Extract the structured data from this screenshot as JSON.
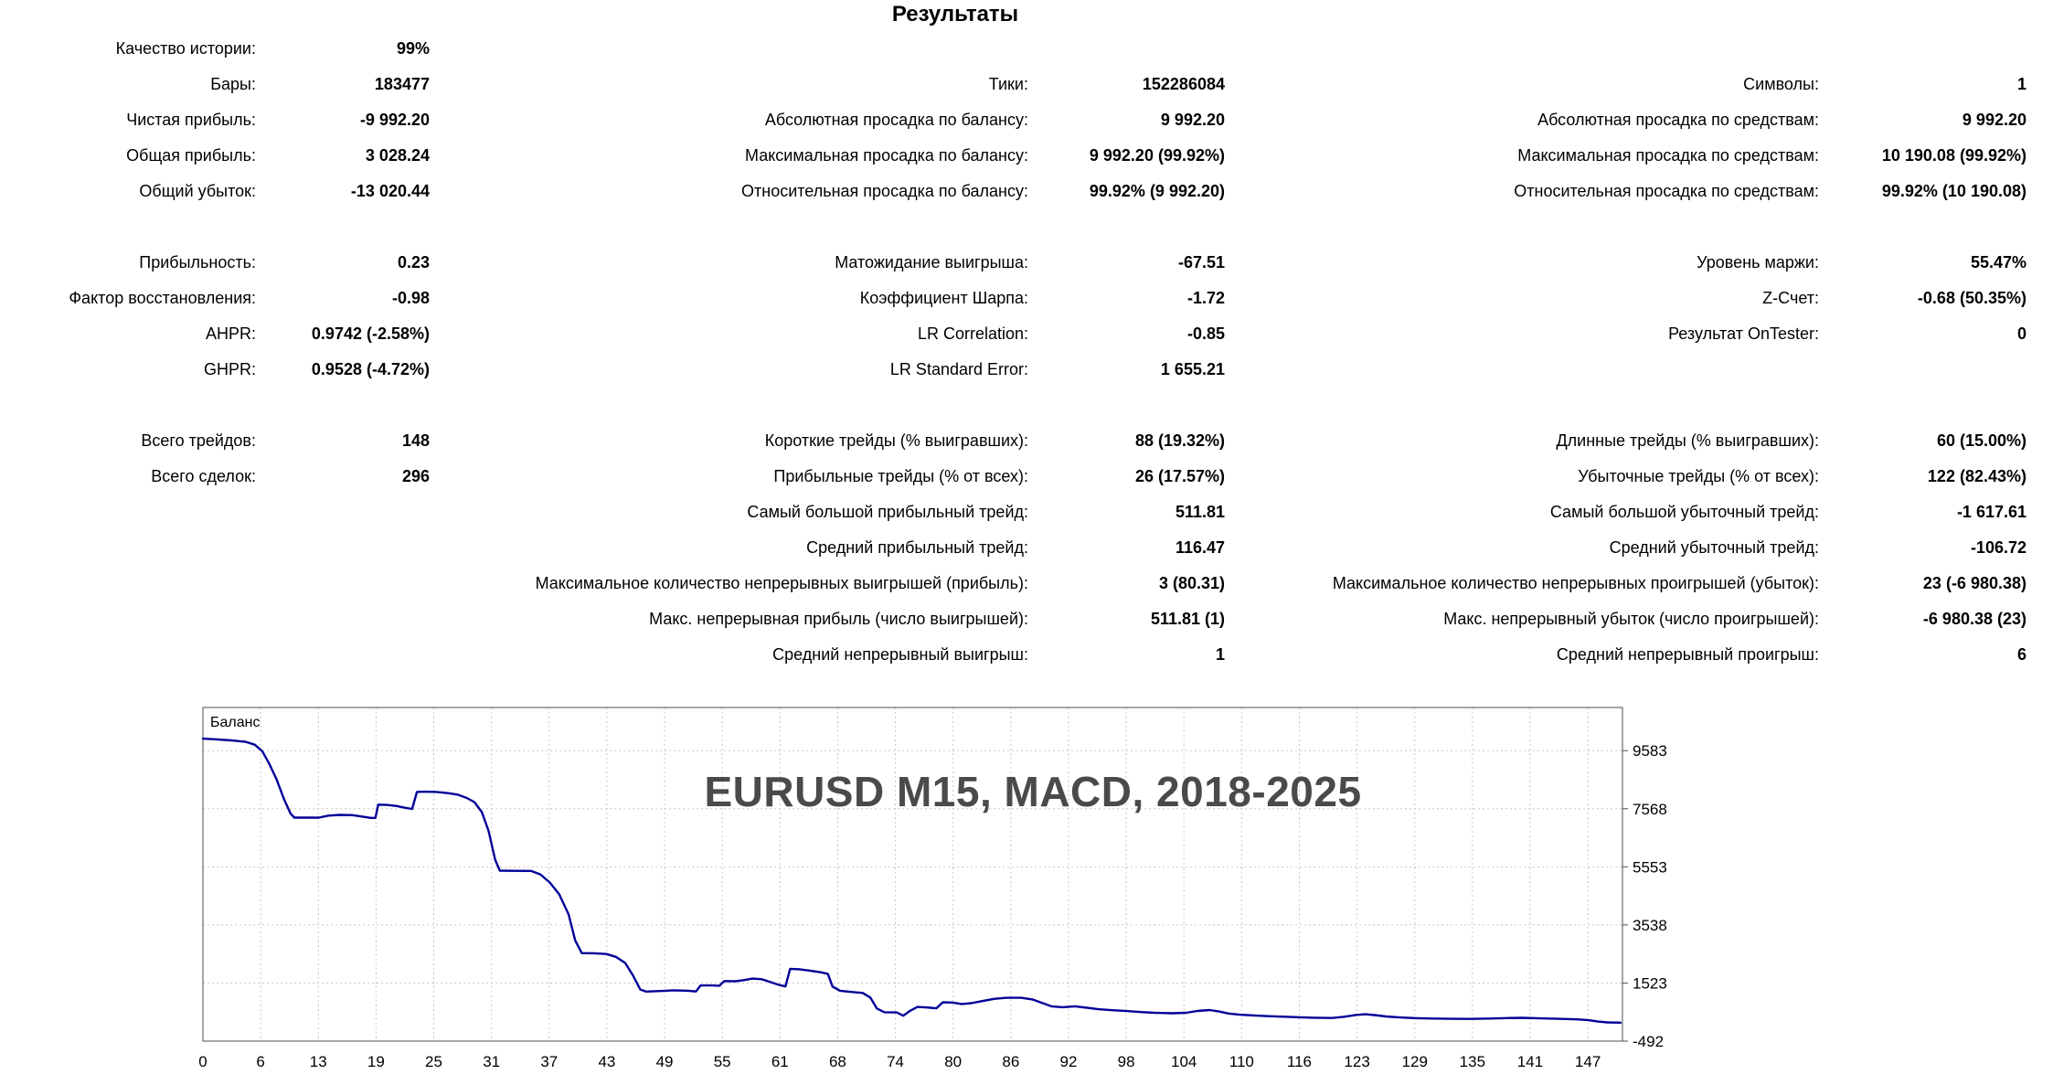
{
  "title": "Результаты",
  "stats": {
    "sections": [
      {
        "rows": [
          [
            "Качество истории:",
            "99%",
            "",
            "",
            "",
            ""
          ],
          [
            "Бары:",
            "183477",
            "Тики:",
            "152286084",
            "Символы:",
            "1"
          ],
          [
            "Чистая прибыль:",
            "-9 992.20",
            "Абсолютная просадка по балансу:",
            "9 992.20",
            "Абсолютная просадка по средствам:",
            "9 992.20"
          ],
          [
            "Общая прибыль:",
            "3 028.24",
            "Максимальная просадка по балансу:",
            "9 992.20 (99.92%)",
            "Максимальная просадка по средствам:",
            "10 190.08 (99.92%)"
          ],
          [
            "Общий убыток:",
            "-13 020.44",
            "Относительная просадка по балансу:",
            "99.92% (9 992.20)",
            "Относительная просадка по средствам:",
            "99.92% (10 190.08)"
          ]
        ]
      },
      {
        "rows": [
          [
            "Прибыльность:",
            "0.23",
            "Матожидание выигрыша:",
            "-67.51",
            "Уровень маржи:",
            "55.47%"
          ],
          [
            "Фактор восстановления:",
            "-0.98",
            "Коэффициент Шарпа:",
            "-1.72",
            "Z-Счет:",
            "-0.68 (50.35%)"
          ],
          [
            "AHPR:",
            "0.9742 (-2.58%)",
            "LR Correlation:",
            "-0.85",
            "Результат OnTester:",
            "0"
          ],
          [
            "GHPR:",
            "0.9528 (-4.72%)",
            "LR Standard Error:",
            "1 655.21",
            "",
            ""
          ]
        ]
      },
      {
        "rows": [
          [
            "Всего трейдов:",
            "148",
            "Короткие трейды (% выигравших):",
            "88 (19.32%)",
            "Длинные трейды (% выигравших):",
            "60 (15.00%)"
          ],
          [
            "Всего сделок:",
            "296",
            "Прибыльные трейды (% от всех):",
            "26 (17.57%)",
            "Убыточные трейды (% от всех):",
            "122 (82.43%)"
          ],
          [
            "",
            "",
            "Самый большой прибыльный трейд:",
            "511.81",
            "Самый большой убыточный трейд:",
            "-1 617.61"
          ],
          [
            "",
            "",
            "Средний прибыльный трейд:",
            "116.47",
            "Средний убыточный трейд:",
            "-106.72"
          ],
          [
            "",
            "",
            "Максимальное количество непрерывных выигрышей (прибыль):",
            "3 (80.31)",
            "Максимальное количество непрерывных проигрышей (убыток):",
            "23 (-6 980.38)"
          ],
          [
            "",
            "",
            "Макс. непрерывная прибыль (число выигрышей):",
            "511.81 (1)",
            "Макс. непрерывный убыток (число проигрышей):",
            "-6 980.38 (23)"
          ],
          [
            "",
            "",
            "Средний непрерывный выигрыш:",
            "1",
            "Средний непрерывный проигрыш:",
            "6"
          ]
        ]
      }
    ]
  },
  "chart_data": {
    "type": "line",
    "title": "Баланс",
    "watermark": "EURUSD M15, MACD, 2018-2025",
    "x_tick_labels": [
      "0",
      "6",
      "13",
      "19",
      "25",
      "31",
      "37",
      "43",
      "49",
      "55",
      "61",
      "68",
      "74",
      "80",
      "86",
      "92",
      "98",
      "104",
      "110",
      "116",
      "123",
      "129",
      "135",
      "141",
      "147"
    ],
    "y_ticks": [
      9583,
      7568,
      5553,
      3538,
      1523,
      -492
    ],
    "xlim": [
      0,
      150.6
    ],
    "ylim": [
      -492,
      11080
    ],
    "grid": true,
    "legend_position": "top-left-inside",
    "line_color": "#000099",
    "grid_color": "#c9c9c9",
    "border_color": "#4d4d4d",
    "watermark_color": "#4a4a4a",
    "series": [
      {
        "name": "Баланс",
        "points": [
          [
            0,
            10000
          ],
          [
            1.5,
            9975
          ],
          [
            3,
            9940
          ],
          [
            4.5,
            9890
          ],
          [
            5.5,
            9790
          ],
          [
            6.3,
            9560
          ],
          [
            7,
            9150
          ],
          [
            7.8,
            8600
          ],
          [
            8.6,
            7900
          ],
          [
            9.3,
            7400
          ],
          [
            9.7,
            7260
          ],
          [
            12.3,
            7260
          ],
          [
            13.3,
            7330
          ],
          [
            14.5,
            7355
          ],
          [
            15.8,
            7350
          ],
          [
            16.8,
            7300
          ],
          [
            17.8,
            7250
          ],
          [
            18.3,
            7250
          ],
          [
            18.6,
            7710
          ],
          [
            19.5,
            7700
          ],
          [
            20.5,
            7665
          ],
          [
            21.5,
            7600
          ],
          [
            22.2,
            7560
          ],
          [
            22.7,
            8150
          ],
          [
            23.5,
            8160
          ],
          [
            24.8,
            8150
          ],
          [
            26,
            8110
          ],
          [
            27,
            8060
          ],
          [
            28,
            7940
          ],
          [
            28.8,
            7800
          ],
          [
            29.6,
            7450
          ],
          [
            30.3,
            6800
          ],
          [
            31,
            5800
          ],
          [
            31.5,
            5420
          ],
          [
            33,
            5415
          ],
          [
            34.8,
            5410
          ],
          [
            35.8,
            5290
          ],
          [
            36.8,
            5010
          ],
          [
            37.8,
            4600
          ],
          [
            38.8,
            3900
          ],
          [
            39.5,
            3000
          ],
          [
            40.2,
            2560
          ],
          [
            41.5,
            2555
          ],
          [
            42.8,
            2530
          ],
          [
            43.8,
            2430
          ],
          [
            44.8,
            2220
          ],
          [
            45.6,
            1800
          ],
          [
            46.4,
            1300
          ],
          [
            47,
            1225
          ],
          [
            48.5,
            1245
          ],
          [
            50,
            1270
          ],
          [
            51.5,
            1255
          ],
          [
            52.3,
            1230
          ],
          [
            52.8,
            1440
          ],
          [
            54,
            1440
          ],
          [
            54.8,
            1430
          ],
          [
            55.3,
            1590
          ],
          [
            56.5,
            1585
          ],
          [
            57.3,
            1620
          ],
          [
            58.3,
            1675
          ],
          [
            59.3,
            1655
          ],
          [
            60.2,
            1555
          ],
          [
            61,
            1470
          ],
          [
            61.8,
            1405
          ],
          [
            62.3,
            2015
          ],
          [
            63.3,
            2000
          ],
          [
            64.5,
            1945
          ],
          [
            65.5,
            1900
          ],
          [
            66.3,
            1840
          ],
          [
            66.8,
            1400
          ],
          [
            67.6,
            1255
          ],
          [
            68.8,
            1215
          ],
          [
            70,
            1180
          ],
          [
            70.8,
            1020
          ],
          [
            71.5,
            640
          ],
          [
            72.3,
            510
          ],
          [
            73.6,
            505
          ],
          [
            74.3,
            390
          ],
          [
            75,
            555
          ],
          [
            75.8,
            695
          ],
          [
            76.8,
            675
          ],
          [
            77.8,
            645
          ],
          [
            78.5,
            855
          ],
          [
            79.5,
            845
          ],
          [
            80.5,
            795
          ],
          [
            81.5,
            825
          ],
          [
            82.8,
            905
          ],
          [
            84,
            975
          ],
          [
            85.3,
            1010
          ],
          [
            86.8,
            1010
          ],
          [
            88,
            955
          ],
          [
            89,
            835
          ],
          [
            90,
            715
          ],
          [
            91.2,
            685
          ],
          [
            92.5,
            715
          ],
          [
            93.8,
            665
          ],
          [
            95,
            615
          ],
          [
            96.5,
            580
          ],
          [
            98,
            550
          ],
          [
            99.5,
            515
          ],
          [
            101,
            490
          ],
          [
            102.8,
            475
          ],
          [
            104.3,
            490
          ],
          [
            105.5,
            555
          ],
          [
            106.8,
            585
          ],
          [
            107.8,
            535
          ],
          [
            108.8,
            465
          ],
          [
            110,
            425
          ],
          [
            111.5,
            400
          ],
          [
            113,
            375
          ],
          [
            114.8,
            355
          ],
          [
            116.3,
            335
          ],
          [
            118,
            320
          ],
          [
            119.8,
            310
          ],
          [
            121,
            350
          ],
          [
            122.3,
            415
          ],
          [
            123.3,
            440
          ],
          [
            124.3,
            410
          ],
          [
            125.5,
            365
          ],
          [
            127,
            330
          ],
          [
            128.8,
            305
          ],
          [
            130.5,
            290
          ],
          [
            132.5,
            280
          ],
          [
            134.5,
            278
          ],
          [
            136.5,
            292
          ],
          [
            138.3,
            308
          ],
          [
            140,
            315
          ],
          [
            141.8,
            298
          ],
          [
            143.8,
            280
          ],
          [
            145.8,
            262
          ],
          [
            147,
            235
          ],
          [
            148,
            185
          ],
          [
            149,
            158
          ],
          [
            150.4,
            150
          ]
        ]
      }
    ]
  }
}
